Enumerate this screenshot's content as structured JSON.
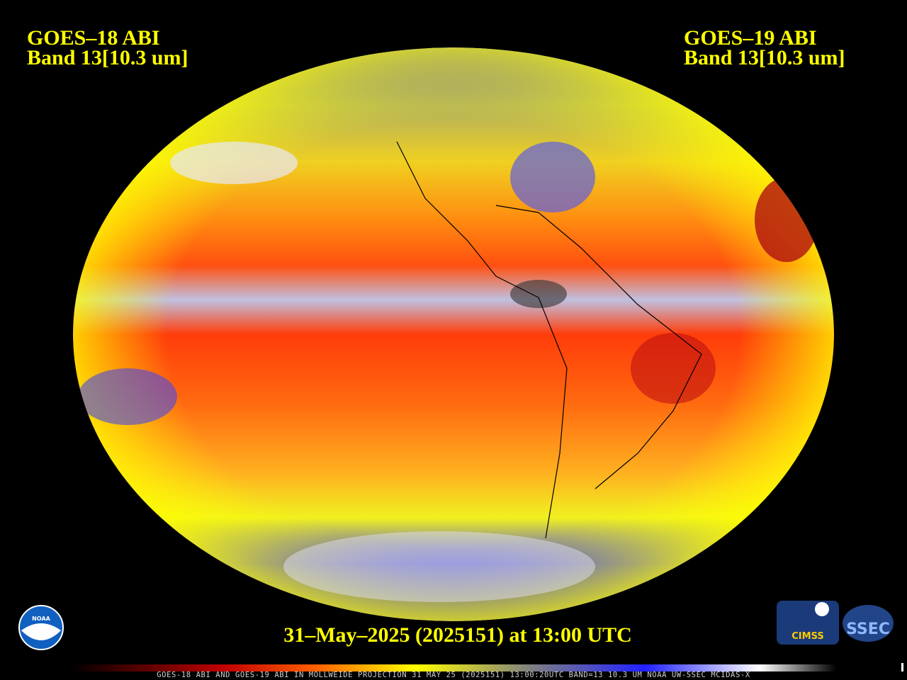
{
  "header": {
    "left": {
      "line1": "GOES–18 ABI",
      "line2": "Band 13[10.3 um]"
    },
    "right": {
      "line1": "GOES–19 ABI",
      "line2": "Band 13[10.3 um]"
    }
  },
  "timestamp": "31–May–2025 (2025151) at 13:00 UTC",
  "footer": "GOES-18 ABI AND GOES-19 ABI IN MOLLWEIDE PROJECTION 31 MAY 25 (2025151) 13:00:20UTC BAND=13 10.3 UM NOAA UW-SSEC MCIDAS-X",
  "logos": {
    "noaa": "NOAA",
    "cimss": "CIMSS",
    "ssec": "SSEC"
  }
}
